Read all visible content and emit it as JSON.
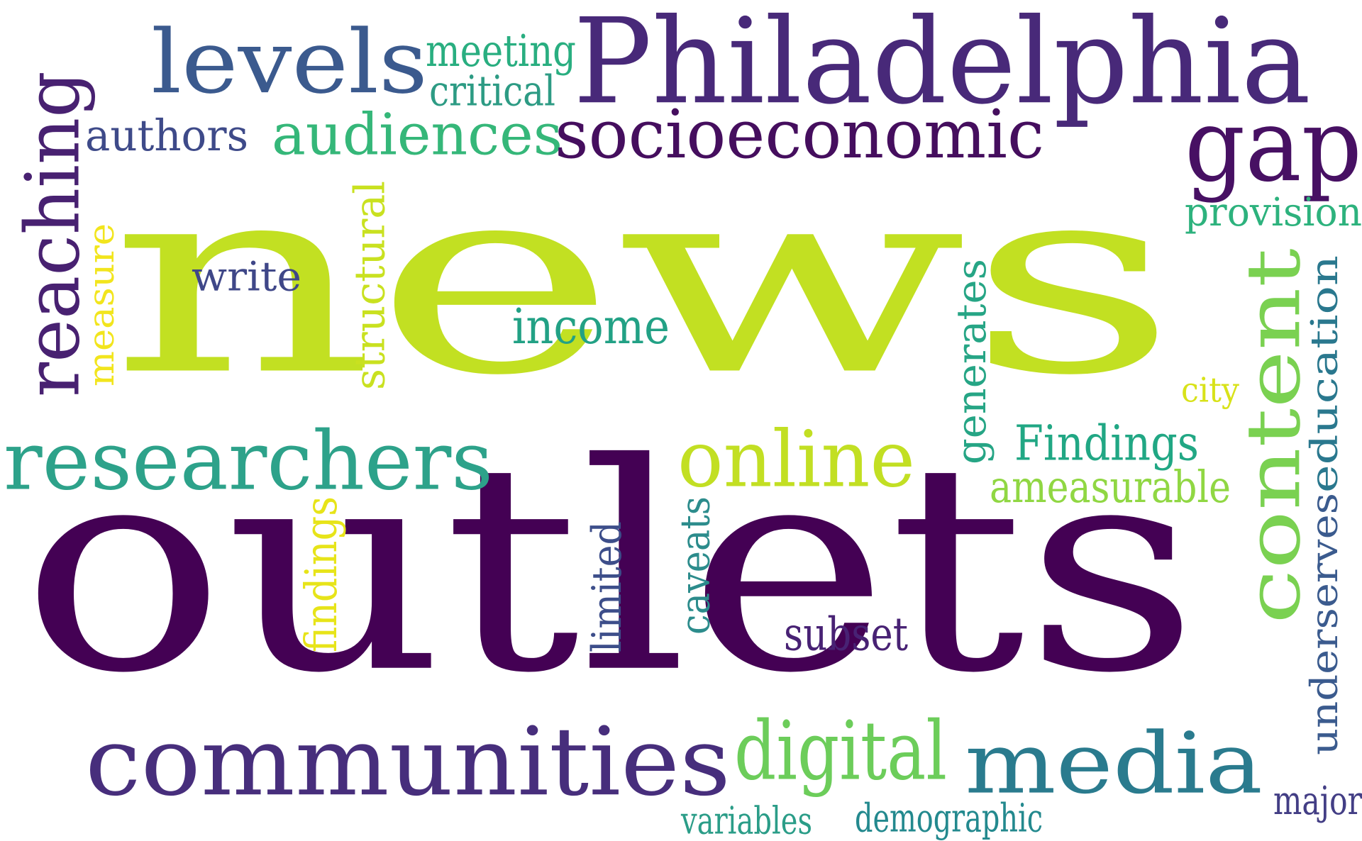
{
  "words": [
    {
      "text": "news",
      "color": "#c2e022"
    },
    {
      "text": "outlets",
      "color": "#440154"
    },
    {
      "text": "Philadelphia",
      "color": "#482979"
    },
    {
      "text": "levels",
      "color": "#3b5a8e"
    },
    {
      "text": "meeting",
      "color": "#29ae80"
    },
    {
      "text": "critical",
      "color": "#2d9b84"
    },
    {
      "text": "gap",
      "color": "#471063"
    },
    {
      "text": "authors",
      "color": "#3e4a89"
    },
    {
      "text": "audiences",
      "color": "#35b779"
    },
    {
      "text": "socioeconomic",
      "color": "#450e5e"
    },
    {
      "text": "reaching",
      "color": "#482171"
    },
    {
      "text": "provision",
      "color": "#2db27d"
    },
    {
      "text": "measure",
      "color": "#f2e51d"
    },
    {
      "text": "write",
      "color": "#3f4788"
    },
    {
      "text": "structural",
      "color": "#c9e120"
    },
    {
      "text": "income",
      "color": "#22a185"
    },
    {
      "text": "content",
      "color": "#7ad151"
    },
    {
      "text": "education",
      "color": "#2a788e"
    },
    {
      "text": "generates",
      "color": "#26a585"
    },
    {
      "text": "city",
      "color": "#d8e219"
    },
    {
      "text": "researchers",
      "color": "#2da28a"
    },
    {
      "text": "online",
      "color": "#c2df23"
    },
    {
      "text": "Findings",
      "color": "#21a784"
    },
    {
      "text": "ameasurable",
      "color": "#90d743"
    },
    {
      "text": "underserves",
      "color": "#3b5b8e"
    },
    {
      "text": "findings",
      "color": "#e7e419"
    },
    {
      "text": "limited",
      "color": "#3d4e8a"
    },
    {
      "text": "caveats",
      "color": "#2c8c8c"
    },
    {
      "text": "subset",
      "color": "#482274"
    },
    {
      "text": "communities",
      "color": "#472e7c"
    },
    {
      "text": "digital",
      "color": "#6ccd5a"
    },
    {
      "text": "media",
      "color": "#2a7b8e"
    },
    {
      "text": "major",
      "color": "#433e85"
    },
    {
      "text": "variables",
      "color": "#2b9d88"
    },
    {
      "text": "demographic",
      "color": "#23898e"
    }
  ]
}
